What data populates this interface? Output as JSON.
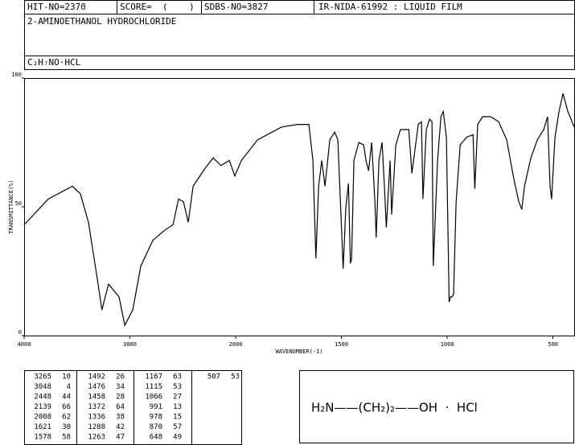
{
  "header": {
    "hit_no": "HIT-NO=2370",
    "score": "SCORE=  (    )",
    "sdbs_no": "SDBS-NO=3827",
    "method": "IR-NIDA-61992 : LIQUID FILM",
    "compound": "2-AMINOETHANOL HYDROCHLORIDE",
    "formula": "C₂H₇NO·HCL"
  },
  "chart_data": {
    "type": "line",
    "xlabel": "WAVENUMBER(-1)",
    "ylabel": "TRANSMITTANCE(%)",
    "xlim": [
      4000,
      400
    ],
    "xbreak": 2000,
    "xticks": [
      4000,
      3000,
      2000,
      1500,
      1000,
      500
    ],
    "ylim": [
      0,
      100
    ],
    "yticks": [
      0,
      50,
      100
    ],
    "color": "#000000",
    "x": [
      4000,
      3772,
      3544,
      3468,
      3392,
      3316,
      3265,
      3202,
      3103,
      3048,
      2973,
      2897,
      2783,
      2669,
      2593,
      2540,
      2494,
      2448,
      2403,
      2289,
      2213,
      2139,
      2061,
      2008,
      1973,
      1897,
      1783,
      1707,
      1654,
      1635,
      1621,
      1608,
      1593,
      1578,
      1555,
      1532,
      1517,
      1502,
      1492,
      1479,
      1467,
      1458,
      1452,
      1441,
      1418,
      1395,
      1384,
      1372,
      1357,
      1342,
      1336,
      1323,
      1308,
      1297,
      1288,
      1270,
      1263,
      1243,
      1221,
      1182,
      1167,
      1137,
      1122,
      1115,
      1099,
      1084,
      1072,
      1066,
      1046,
      1030,
      1019,
      1004,
      991,
      985,
      978,
      970,
      958,
      939,
      909,
      878,
      870,
      856,
      833,
      795,
      757,
      719,
      688,
      662,
      648,
      635,
      605,
      574,
      544,
      526,
      514,
      507,
      491,
      472,
      453,
      430,
      400
    ],
    "values": [
      43,
      53,
      58,
      55,
      44,
      24,
      10,
      20,
      15,
      4,
      10,
      27,
      37,
      41,
      43,
      53,
      52,
      44,
      58,
      65,
      69,
      66,
      68,
      62,
      68,
      76,
      81,
      82,
      82,
      68,
      30,
      58,
      68,
      58,
      76,
      79,
      76,
      46,
      26,
      50,
      59,
      28,
      30,
      68,
      75,
      74,
      68,
      64,
      75,
      52,
      38,
      68,
      75,
      58,
      42,
      68,
      47,
      74,
      80,
      80,
      63,
      82,
      83,
      53,
      80,
      84,
      83,
      27,
      68,
      85,
      87,
      77,
      13,
      15,
      15,
      16,
      52,
      74,
      77,
      78,
      57,
      82,
      85,
      85,
      83,
      76,
      62,
      52,
      49,
      58,
      69,
      76,
      80,
      85,
      58,
      53,
      77,
      87,
      94,
      87,
      81
    ]
  },
  "peak_table": [
    [
      [
        3265,
        10
      ],
      [
        3048,
        4
      ],
      [
        2448,
        44
      ],
      [
        2139,
        66
      ],
      [
        2008,
        62
      ],
      [
        1621,
        30
      ],
      [
        1578,
        58
      ]
    ],
    [
      [
        1492,
        26
      ],
      [
        1476,
        34
      ],
      [
        1458,
        28
      ],
      [
        1372,
        64
      ],
      [
        1336,
        38
      ],
      [
        1288,
        42
      ],
      [
        1263,
        47
      ]
    ],
    [
      [
        1167,
        63
      ],
      [
        1115,
        53
      ],
      [
        1066,
        27
      ],
      [
        991,
        13
      ],
      [
        978,
        15
      ],
      [
        870,
        57
      ],
      [
        648,
        49
      ]
    ],
    [
      [
        507,
        53
      ]
    ]
  ],
  "structure": "H₂N——(CH₂)₂——OH  ·  HCl"
}
